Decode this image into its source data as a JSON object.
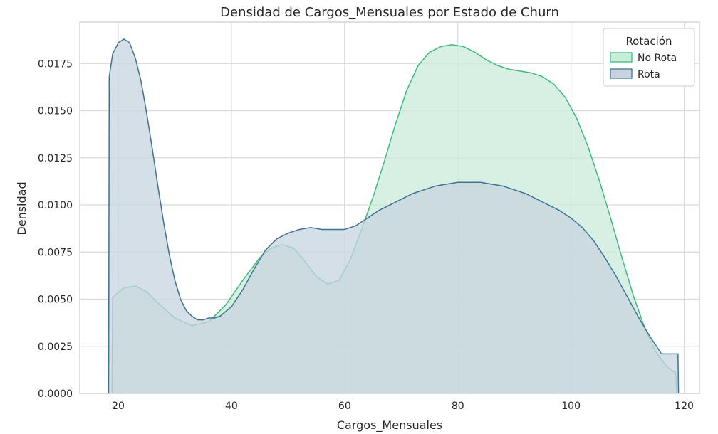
{
  "chart_data": {
    "type": "area",
    "title": "Densidad de Cargos_Mensuales por Estado de Churn",
    "xlabel": "Cargos_Mensuales",
    "ylabel": "Densidad",
    "xlim": [
      13.2,
      122.7
    ],
    "ylim": [
      0,
      0.0197
    ],
    "x_ticks": [
      20,
      40,
      60,
      80,
      100,
      120
    ],
    "x_tick_labels": [
      "20",
      "40",
      "60",
      "80",
      "100",
      "120"
    ],
    "y_ticks": [
      0,
      0.0025,
      0.005,
      0.0075,
      0.01,
      0.0125,
      0.015,
      0.0175
    ],
    "y_tick_labels": [
      "0.0000",
      "0.0025",
      "0.0050",
      "0.0075",
      "0.0100",
      "0.0125",
      "0.0150",
      "0.0175"
    ],
    "grid": true,
    "legend": {
      "title": "Rotación",
      "placement": "top-right"
    },
    "series": [
      {
        "name": "No Rota",
        "color": "#3dba7a",
        "fill": "#c9ebd9",
        "x": [
          18.9,
          19.0,
          21.0,
          23.0,
          25.0,
          27.0,
          30.0,
          33.0,
          36.0,
          39.0,
          42.0,
          45.0,
          47.0,
          49.0,
          51.0,
          53.0,
          55.0,
          57.0,
          59.0,
          61.0,
          63.0,
          65.0,
          67.0,
          69.0,
          71.0,
          73.0,
          75.0,
          77.0,
          79.0,
          81.0,
          83.0,
          85.0,
          87.0,
          89.0,
          91.0,
          93.0,
          95.0,
          97.0,
          99.0,
          101.0,
          103.0,
          105.0,
          107.0,
          109.0,
          111.0,
          113.0,
          115.0,
          117.0,
          118.5,
          118.7
        ],
        "y": [
          0.0,
          0.0051,
          0.0056,
          0.0057,
          0.0054,
          0.0048,
          0.004,
          0.0036,
          0.0038,
          0.0047,
          0.006,
          0.0072,
          0.0077,
          0.0079,
          0.0077,
          0.007,
          0.0062,
          0.0058,
          0.006,
          0.0071,
          0.0087,
          0.0104,
          0.0123,
          0.0143,
          0.0161,
          0.0174,
          0.0181,
          0.0184,
          0.0185,
          0.0184,
          0.0181,
          0.0177,
          0.0174,
          0.0172,
          0.0171,
          0.017,
          0.0168,
          0.0164,
          0.0157,
          0.0146,
          0.0131,
          0.0113,
          0.0093,
          0.0072,
          0.0052,
          0.0035,
          0.0022,
          0.0014,
          0.0011,
          0.0
        ]
      },
      {
        "name": "Rota",
        "color": "#3e7391",
        "fill": "#c7d4df",
        "x": [
          18.3,
          18.4,
          19.0,
          20.0,
          21.0,
          22.0,
          23.0,
          24.0,
          25.0,
          26.0,
          27.0,
          28.0,
          29.0,
          30.0,
          31.0,
          32.0,
          33.0,
          34.0,
          35.0,
          36.0,
          37.0,
          38.0,
          40.0,
          42.0,
          44.0,
          46.0,
          48.0,
          50.0,
          52.0,
          54.0,
          56.0,
          58.0,
          60.0,
          62.0,
          64.0,
          66.0,
          68.0,
          70.0,
          72.0,
          74.0,
          76.0,
          78.0,
          80.0,
          82.0,
          84.0,
          86.0,
          88.0,
          90.0,
          92.0,
          94.0,
          96.0,
          98.0,
          100.0,
          102.0,
          104.0,
          106.0,
          108.0,
          110.0,
          112.0,
          114.0,
          116.0,
          118.0,
          118.9,
          119.0
        ],
        "y": [
          0.0,
          0.0168,
          0.018,
          0.0186,
          0.0188,
          0.0186,
          0.0178,
          0.0166,
          0.0149,
          0.013,
          0.011,
          0.0091,
          0.0074,
          0.006,
          0.005,
          0.0044,
          0.0041,
          0.0039,
          0.0039,
          0.004,
          0.004,
          0.0041,
          0.0046,
          0.0055,
          0.0066,
          0.0076,
          0.0082,
          0.0085,
          0.0087,
          0.0088,
          0.0087,
          0.0087,
          0.0087,
          0.0089,
          0.0093,
          0.0097,
          0.01,
          0.0103,
          0.0106,
          0.0108,
          0.011,
          0.0111,
          0.0112,
          0.0112,
          0.0112,
          0.0111,
          0.011,
          0.0108,
          0.0106,
          0.0103,
          0.01,
          0.0097,
          0.0093,
          0.0088,
          0.0081,
          0.0072,
          0.0062,
          0.0051,
          0.004,
          0.003,
          0.0021,
          0.0021,
          0.0021,
          0.0
        ]
      }
    ]
  }
}
